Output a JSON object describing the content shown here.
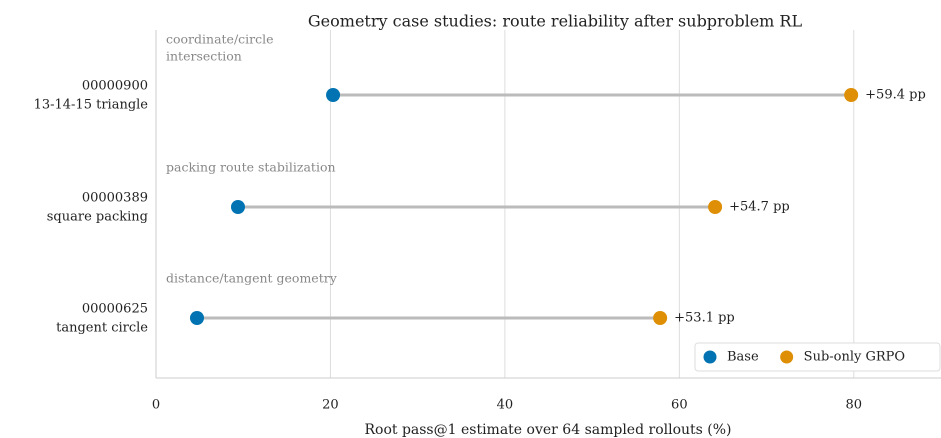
{
  "chart_data": {
    "type": "dumbbell",
    "title": "Geometry case studies: route reliability after subproblem RL",
    "xlabel": "Root pass@1 estimate over 64 sampled rollouts (%)",
    "categories": [
      [
        "00000900",
        "13-14-15 triangle"
      ],
      [
        "00000389",
        "square packing"
      ],
      [
        "00000625",
        "tangent circle"
      ]
    ],
    "notes": [
      [
        "coordinate/circle",
        "intersection"
      ],
      [
        "packing route stabilization"
      ],
      [
        "distance/tangent geometry"
      ]
    ],
    "series": [
      {
        "name": "Base",
        "color": "#0173b2",
        "values": [
          20.3,
          9.4,
          4.7
        ]
      },
      {
        "name": "Sub-only GRPO",
        "color": "#de8f05",
        "values": [
          79.7,
          64.1,
          57.8
        ]
      }
    ],
    "diff_labels": [
      "+59.4 pp",
      "+54.7 pp",
      "+53.1 pp"
    ],
    "xlim": [
      0,
      90
    ],
    "xticks": [
      0,
      20,
      40,
      60,
      80
    ],
    "grid": true,
    "legend": "lower right"
  }
}
